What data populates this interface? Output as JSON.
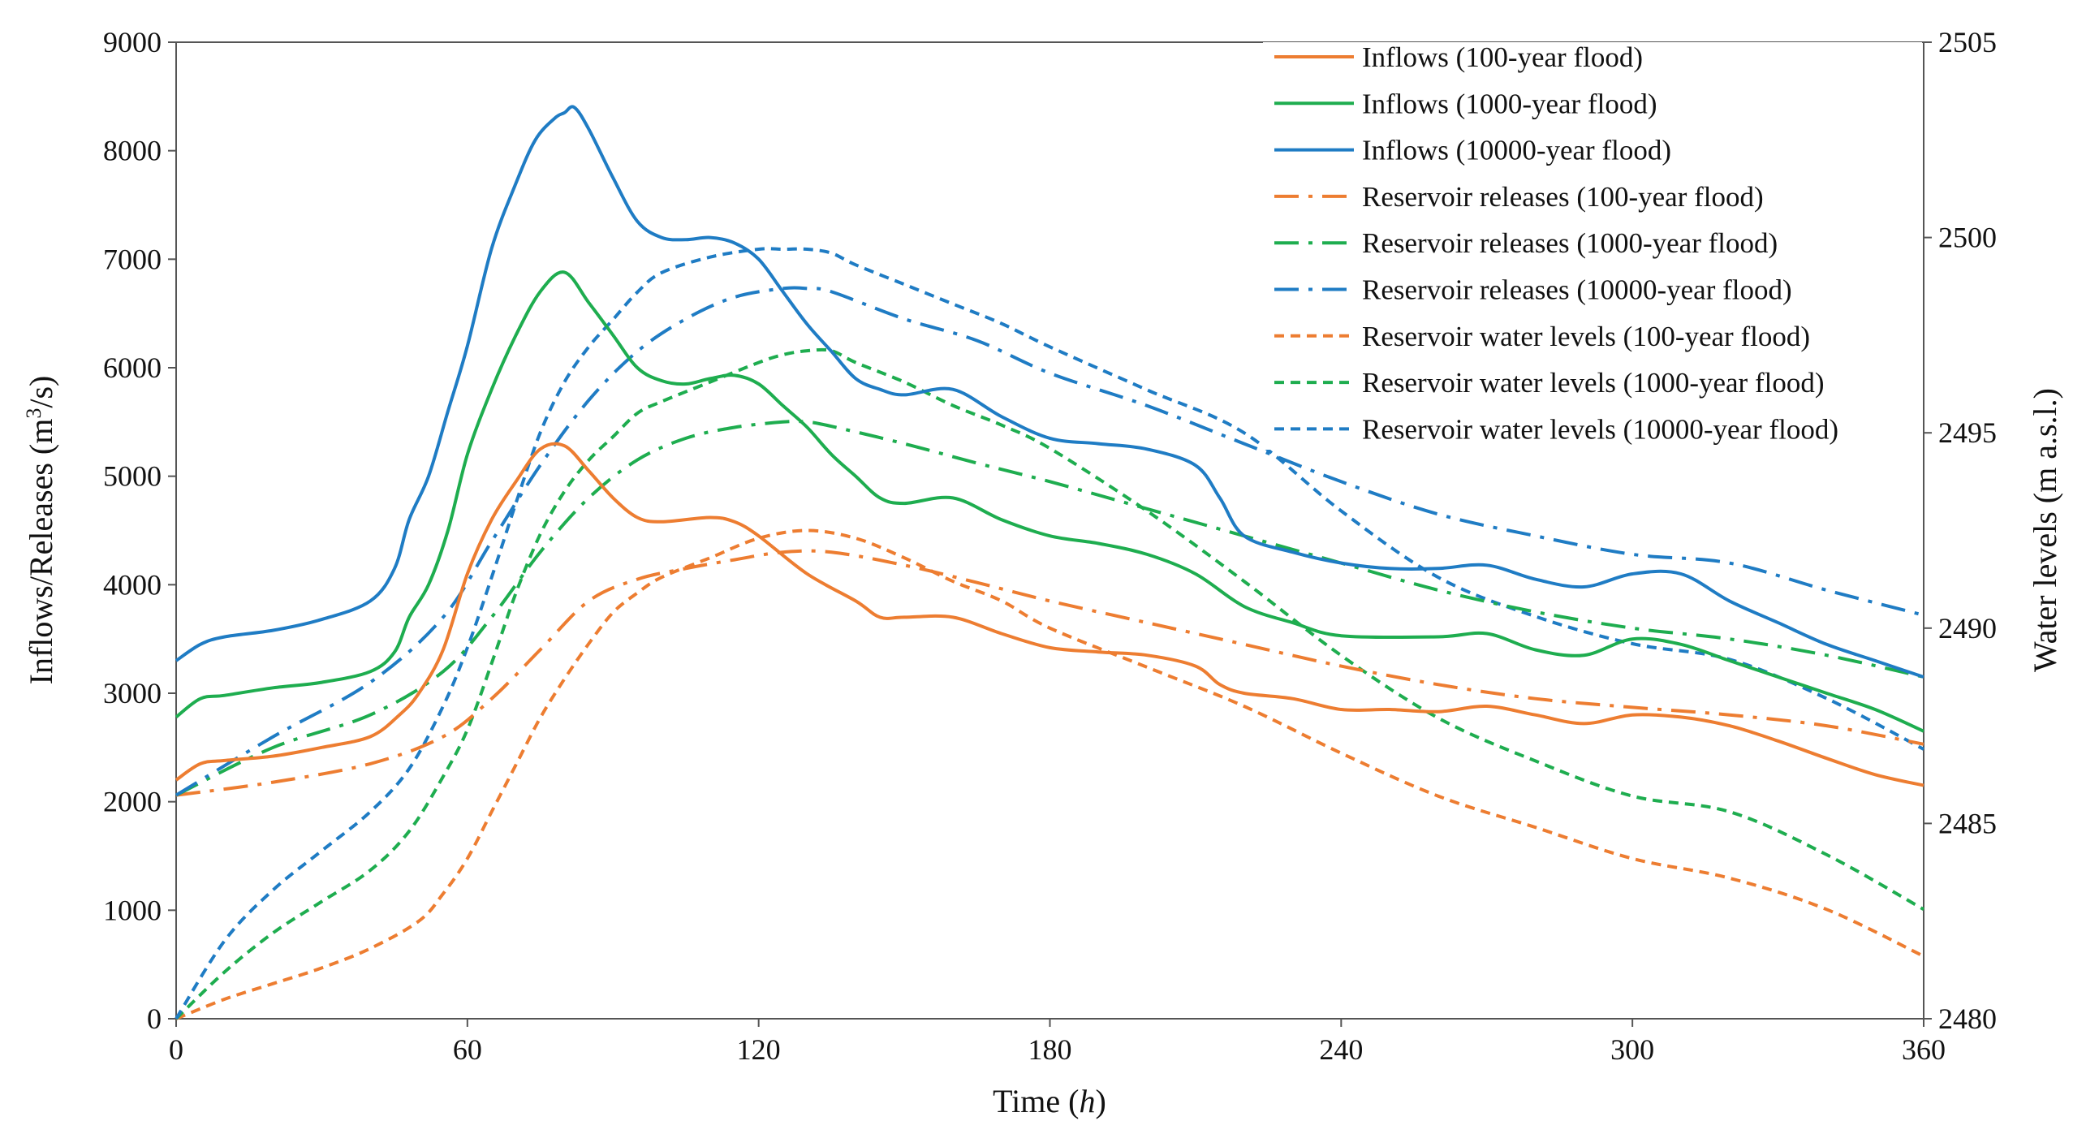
{
  "chart_data": {
    "type": "line",
    "xlabel": "Time",
    "xlabel_italic": "h",
    "ylabel": "Inflows/Releases (m",
    "ylabel_sup": "3",
    "ylabel_tail": "/s)",
    "y2label": "Water levels (m a.s.l.)",
    "xlim": [
      0,
      360
    ],
    "ylim": [
      0,
      9000
    ],
    "y2lim": [
      2480,
      2505
    ],
    "x_ticks": [
      "0",
      "60",
      "120",
      "180",
      "240",
      "300",
      "360"
    ],
    "y_ticks": [
      "0",
      "1000",
      "2000",
      "3000",
      "4000",
      "5000",
      "6000",
      "7000",
      "8000",
      "9000"
    ],
    "y2_ticks": [
      "2480",
      "2485",
      "2490",
      "2495",
      "2500",
      "2505"
    ],
    "grid": false,
    "legend_position": "top-right",
    "series": [
      {
        "name": "Inflows (100-year flood)",
        "color": "#ED7D31",
        "style": "solid",
        "axis": "left",
        "x": [
          0,
          5,
          10,
          20,
          30,
          40,
          46,
          50,
          55,
          60,
          65,
          70,
          75,
          80,
          85,
          90,
          95,
          100,
          110,
          115,
          120,
          130,
          140,
          145,
          150,
          160,
          170,
          180,
          190,
          200,
          210,
          215,
          220,
          230,
          240,
          250,
          260,
          270,
          280,
          290,
          300,
          310,
          320,
          330,
          340,
          350,
          360
        ],
        "values": [
          2200,
          2350,
          2380,
          2420,
          2500,
          2600,
          2800,
          3000,
          3400,
          4100,
          4600,
          4950,
          5250,
          5280,
          5050,
          4800,
          4620,
          4580,
          4620,
          4580,
          4450,
          4100,
          3850,
          3700,
          3700,
          3700,
          3550,
          3420,
          3380,
          3350,
          3250,
          3080,
          3000,
          2950,
          2850,
          2850,
          2830,
          2880,
          2800,
          2720,
          2800,
          2780,
          2700,
          2560,
          2400,
          2250,
          2150
        ]
      },
      {
        "name": "Inflows (1000-year flood)",
        "color": "#1EAD4F",
        "style": "solid",
        "axis": "left",
        "x": [
          0,
          5,
          10,
          20,
          30,
          40,
          45,
          48,
          52,
          56,
          60,
          65,
          70,
          75,
          80,
          85,
          90,
          95,
          100,
          105,
          110,
          115,
          120,
          125,
          130,
          135,
          140,
          145,
          150,
          160,
          170,
          180,
          190,
          200,
          210,
          220,
          230,
          240,
          260,
          270,
          280,
          290,
          300,
          310,
          320,
          330,
          340,
          350,
          360
        ],
        "values": [
          2780,
          2950,
          2980,
          3050,
          3100,
          3200,
          3380,
          3700,
          4000,
          4500,
          5200,
          5800,
          6300,
          6700,
          6880,
          6600,
          6300,
          6000,
          5880,
          5850,
          5900,
          5930,
          5850,
          5650,
          5450,
          5200,
          5000,
          4800,
          4750,
          4800,
          4600,
          4450,
          4380,
          4280,
          4100,
          3800,
          3650,
          3530,
          3520,
          3550,
          3400,
          3350,
          3500,
          3450,
          3300,
          3150,
          3000,
          2850,
          2650
        ]
      },
      {
        "name": "Inflows (10000-year flood)",
        "color": "#1F7CC4",
        "style": "solid",
        "axis": "left",
        "x": [
          0,
          5,
          10,
          20,
          30,
          40,
          45,
          48,
          52,
          56,
          60,
          65,
          70,
          74,
          78,
          80,
          82,
          85,
          90,
          95,
          100,
          105,
          110,
          115,
          120,
          125,
          130,
          135,
          140,
          145,
          150,
          160,
          170,
          180,
          190,
          200,
          210,
          215,
          220,
          230,
          240,
          250,
          260,
          270,
          280,
          290,
          300,
          310,
          320,
          330,
          340,
          350,
          360
        ],
        "values": [
          3300,
          3450,
          3520,
          3580,
          3680,
          3850,
          4150,
          4600,
          5000,
          5600,
          6200,
          7100,
          7700,
          8100,
          8300,
          8350,
          8400,
          8200,
          7750,
          7350,
          7200,
          7180,
          7200,
          7150,
          7000,
          6700,
          6400,
          6150,
          5900,
          5800,
          5750,
          5800,
          5550,
          5350,
          5300,
          5250,
          5100,
          4800,
          4450,
          4300,
          4200,
          4150,
          4150,
          4180,
          4050,
          3980,
          4100,
          4100,
          3850,
          3650,
          3450,
          3300,
          3150
        ]
      },
      {
        "name": "Reservoir releases (100-year flood)",
        "color": "#ED7D31",
        "style": "dashdot",
        "axis": "left",
        "x": [
          0,
          20,
          40,
          55,
          65,
          75,
          85,
          95,
          105,
          115,
          125,
          135,
          150,
          165,
          180,
          200,
          220,
          240,
          260,
          280,
          300,
          320,
          340,
          360
        ],
        "values": [
          2060,
          2180,
          2350,
          2600,
          2950,
          3400,
          3850,
          4050,
          4150,
          4230,
          4300,
          4300,
          4180,
          4020,
          3850,
          3650,
          3450,
          3250,
          3080,
          2950,
          2870,
          2800,
          2700,
          2530
        ]
      },
      {
        "name": "Reservoir releases (1000-year flood)",
        "color": "#1EAD4F",
        "style": "dashdot",
        "axis": "left",
        "x": [
          0,
          20,
          40,
          55,
          65,
          75,
          85,
          95,
          105,
          115,
          125,
          130,
          135,
          150,
          165,
          180,
          200,
          220,
          240,
          260,
          280,
          300,
          320,
          340,
          360
        ],
        "values": [
          2060,
          2500,
          2800,
          3200,
          3700,
          4300,
          4800,
          5150,
          5350,
          5450,
          5500,
          5500,
          5460,
          5300,
          5120,
          4950,
          4700,
          4450,
          4200,
          3950,
          3750,
          3600,
          3500,
          3350,
          3150
        ]
      },
      {
        "name": "Reservoir releases (10000-year flood)",
        "color": "#1F7CC4",
        "style": "dashdot",
        "axis": "left",
        "x": [
          0,
          20,
          40,
          55,
          65,
          75,
          85,
          95,
          105,
          115,
          125,
          130,
          135,
          150,
          165,
          180,
          200,
          220,
          240,
          260,
          280,
          300,
          320,
          340,
          360
        ],
        "values": [
          2060,
          2600,
          3100,
          3700,
          4400,
          5100,
          5700,
          6150,
          6450,
          6650,
          6730,
          6730,
          6700,
          6450,
          6250,
          5950,
          5650,
          5300,
          4950,
          4650,
          4450,
          4280,
          4200,
          3950,
          3720
        ]
      },
      {
        "name": "Reservoir water levels (100-year flood)",
        "color": "#ED7D31",
        "style": "dashed",
        "axis": "right",
        "x": [
          0,
          10,
          20,
          30,
          40,
          50,
          55,
          60,
          65,
          70,
          75,
          80,
          85,
          90,
          95,
          100,
          110,
          120,
          130,
          140,
          150,
          160,
          170,
          180,
          200,
          220,
          240,
          260,
          280,
          300,
          320,
          340,
          360
        ],
        "values": [
          2480,
          2480.5,
          2480.9,
          2481.3,
          2481.8,
          2482.5,
          2483.2,
          2484.1,
          2485.3,
          2486.5,
          2487.7,
          2488.7,
          2489.6,
          2490.4,
          2490.9,
          2491.3,
          2491.8,
          2492.3,
          2492.5,
          2492.3,
          2491.8,
          2491.2,
          2490.7,
          2490.0,
          2489.0,
          2488.0,
          2486.8,
          2485.7,
          2484.9,
          2484.1,
          2483.6,
          2482.8,
          2481.6
        ]
      },
      {
        "name": "Reservoir water levels (1000-year flood)",
        "color": "#1EAD4F",
        "style": "dashed",
        "axis": "right",
        "x": [
          0,
          10,
          20,
          30,
          40,
          48,
          55,
          60,
          65,
          70,
          75,
          80,
          85,
          90,
          95,
          100,
          110,
          120,
          125,
          130,
          135,
          140,
          150,
          160,
          170,
          180,
          200,
          220,
          240,
          260,
          280,
          300,
          320,
          340,
          360
        ],
        "values": [
          2480,
          2481.2,
          2482.2,
          2483.0,
          2483.8,
          2484.8,
          2486.2,
          2487.4,
          2489.1,
          2490.9,
          2492.4,
          2493.5,
          2494.3,
          2494.9,
          2495.5,
          2495.8,
          2496.3,
          2496.8,
          2497.0,
          2497.1,
          2497.1,
          2496.8,
          2496.3,
          2495.7,
          2495.2,
          2494.6,
          2493.0,
          2491.2,
          2489.3,
          2487.7,
          2486.6,
          2485.7,
          2485.3,
          2484.2,
          2482.8
        ]
      },
      {
        "name": "Reservoir water levels (10000-year flood)",
        "color": "#1F7CC4",
        "style": "dashed",
        "axis": "right",
        "x": [
          0,
          10,
          20,
          30,
          40,
          48,
          55,
          60,
          65,
          70,
          75,
          80,
          85,
          90,
          95,
          100,
          110,
          120,
          125,
          130,
          135,
          140,
          150,
          160,
          170,
          180,
          200,
          220,
          240,
          260,
          280,
          300,
          320,
          340,
          360
        ],
        "values": [
          2480,
          2482.0,
          2483.3,
          2484.3,
          2485.3,
          2486.4,
          2488.0,
          2489.5,
          2491.3,
          2493.2,
          2495.0,
          2496.3,
          2497.2,
          2497.9,
          2498.6,
          2499.1,
          2499.5,
          2499.7,
          2499.7,
          2499.7,
          2499.6,
          2499.3,
          2498.8,
          2498.3,
          2497.8,
          2497.2,
          2496.1,
          2495.0,
          2493.0,
          2491.3,
          2490.3,
          2489.6,
          2489.2,
          2488.2,
          2486.9
        ]
      }
    ]
  }
}
